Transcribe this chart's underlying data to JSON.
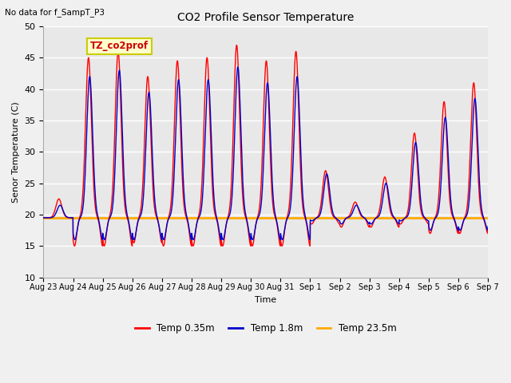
{
  "title": "CO2 Profile Sensor Temperature",
  "top_left_text": "No data for f_SampT_P3",
  "annotation_box_text": "TZ_co2prof",
  "xlabel": "Time",
  "ylabel": "Senor Temperature (C)",
  "ylim": [
    10,
    50
  ],
  "yticks": [
    10,
    15,
    20,
    25,
    30,
    35,
    40,
    45,
    50
  ],
  "x_tick_labels": [
    "Aug 23",
    "Aug 24",
    "Aug 25",
    "Aug 26",
    "Aug 27",
    "Aug 28",
    "Aug 29",
    "Aug 30",
    "Aug 31",
    "Sep 1",
    "Sep 2",
    "Sep 3",
    "Sep 4",
    "Sep 5",
    "Sep 6",
    "Sep 7"
  ],
  "legend_labels": [
    "Temp 0.35m",
    "Temp 1.8m",
    "Temp 23.5m"
  ],
  "legend_colors": [
    "#ff0000",
    "#0000cc",
    "#ffaa00"
  ],
  "line_color_red": "#ff0000",
  "line_color_blue": "#0000cc",
  "line_color_orange": "#ffaa00",
  "annotation_box_color": "#ffffcc",
  "annotation_box_edge": "#cccc00",
  "annotation_text_color": "#cc0000",
  "background_color": "#e8e8e8",
  "grid_color": "#ffffff",
  "flat_line_value": 19.5,
  "figwidth": 6.4,
  "figheight": 4.8,
  "dpi": 100
}
